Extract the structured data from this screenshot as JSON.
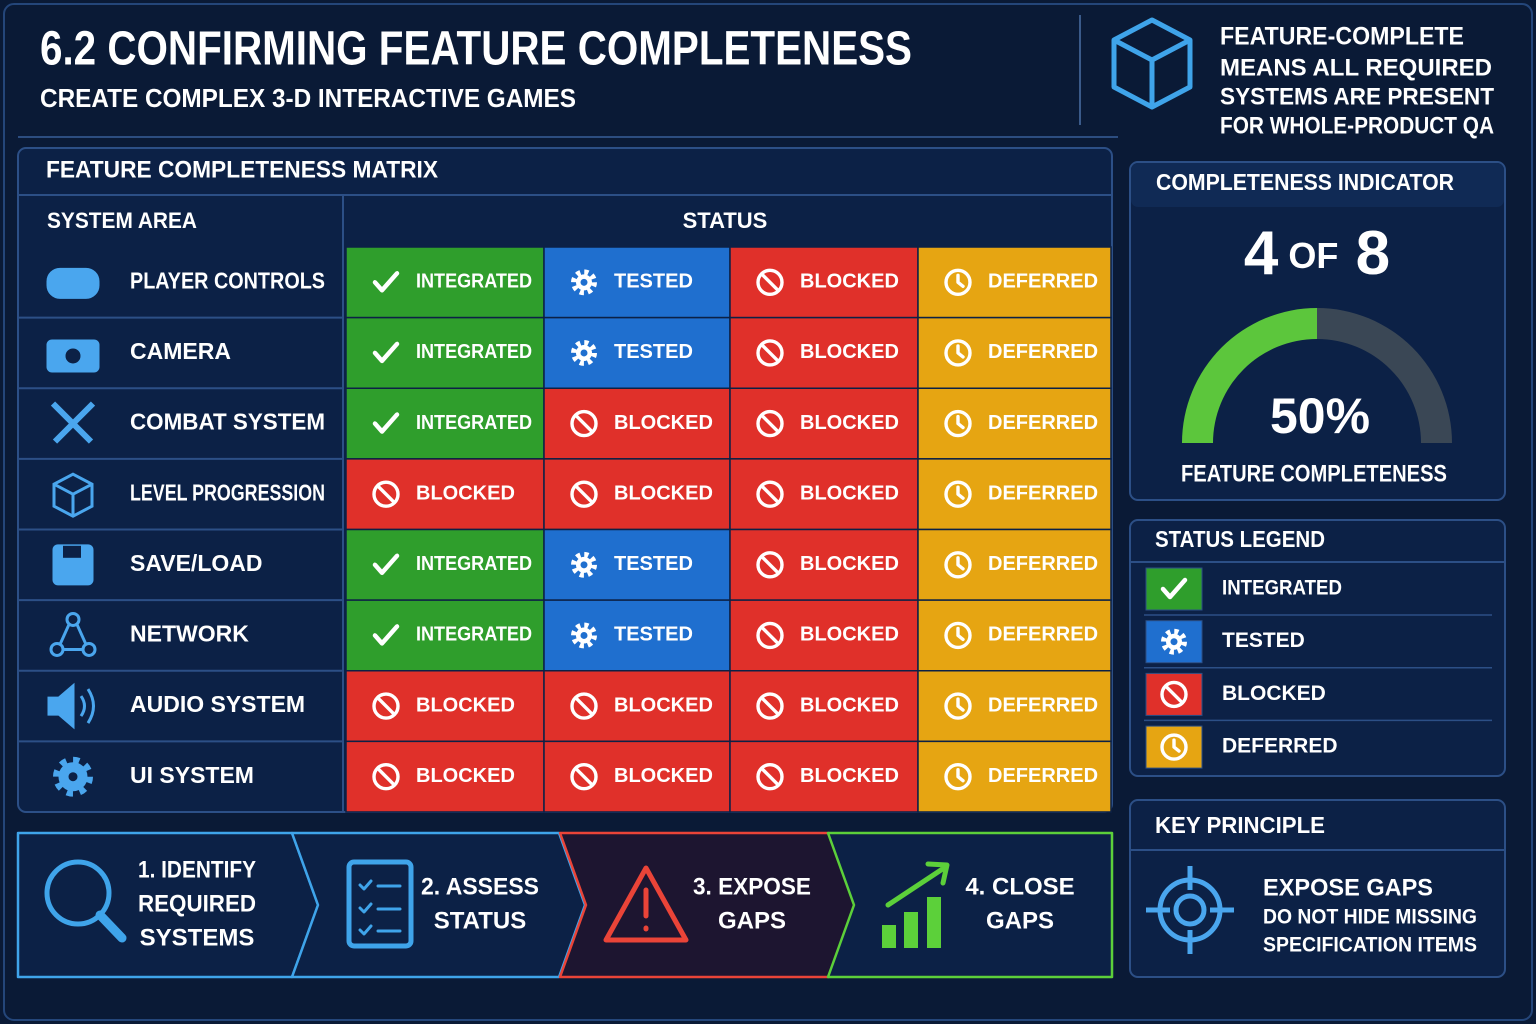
{
  "header": {
    "title": "6.2 CONFIRMING FEATURE COMPLETENESS",
    "subtitle": "CREATE COMPLEX 3-D INTERACTIVE GAMES"
  },
  "note": {
    "title": "FEATURE-COMPLETE",
    "lines": [
      "MEANS ALL REQUIRED",
      "SYSTEMS ARE PRESENT",
      "FOR WHOLE-PRODUCT QA"
    ]
  },
  "matrix": {
    "title": "FEATURE COMPLETENESS MATRIX",
    "columns": [
      "SYSTEM AREA",
      "STATUS"
    ],
    "rows": [
      {
        "area": "PLAYER CONTROLS",
        "cells": [
          "INTEGRATED",
          "TESTED",
          "BLOCKED",
          "DEFERRED"
        ]
      },
      {
        "area": "CAMERA",
        "cells": [
          "INTEGRATED",
          "TESTED",
          "BLOCKED",
          "DEFERRED"
        ]
      },
      {
        "area": "COMBAT SYSTEM",
        "cells": [
          "INTEGRATED",
          "BLOCKED",
          "BLOCKED",
          "DEFERRED"
        ]
      },
      {
        "area": "LEVEL PROGRESSION",
        "cells": [
          "BLOCKED",
          "BLOCKED",
          "BLOCKED",
          "DEFERRED"
        ]
      },
      {
        "area": "SAVE/LOAD",
        "cells": [
          "INTEGRATED",
          "TESTED",
          "BLOCKED",
          "DEFERRED"
        ]
      },
      {
        "area": "NETWORK",
        "cells": [
          "INTEGRATED",
          "TESTED",
          "BLOCKED",
          "DEFERRED"
        ]
      },
      {
        "area": "AUDIO SYSTEM",
        "cells": [
          "BLOCKED",
          "BLOCKED",
          "BLOCKED",
          "DEFERRED"
        ]
      },
      {
        "area": "UI SYSTEM",
        "cells": [
          "BLOCKED",
          "BLOCKED",
          "BLOCKED",
          "DEFERRED"
        ]
      }
    ]
  },
  "indicator": {
    "title": "COMPLETENESS INDICATOR",
    "count": 4,
    "of": "OF",
    "total": 8,
    "percent": "50%",
    "caption": "FEATURE COMPLETENESS",
    "color": "#5cc63c"
  },
  "legend": {
    "title": "STATUS LEGEND",
    "items": [
      {
        "label": "INTEGRATED",
        "color": "#2f9e2c"
      },
      {
        "label": "TESTED",
        "color": "#1f6fcf"
      },
      {
        "label": "BLOCKED",
        "color": "#e0302a"
      },
      {
        "label": "DEFERRED",
        "color": "#e6a512"
      }
    ]
  },
  "principle": {
    "title": "KEY PRINCIPLE",
    "heading": "EXPOSE GAPS",
    "lines": [
      "DO NOT HIDE MISSING",
      "SPECIFICATION ITEMS"
    ]
  },
  "steps": [
    {
      "lines": [
        "1. IDENTIFY",
        "REQUIRED",
        "SYSTEMS"
      ],
      "color": "#3fa4ea"
    },
    {
      "lines": [
        "2. ASSESS",
        "STATUS"
      ],
      "color": "#3fa4ea"
    },
    {
      "lines": [
        "3. EXPOSE",
        "GAPS"
      ],
      "color": "#ea4438"
    },
    {
      "lines": [
        "4. CLOSE",
        "GAPS"
      ],
      "color": "#5cd03a"
    }
  ]
}
